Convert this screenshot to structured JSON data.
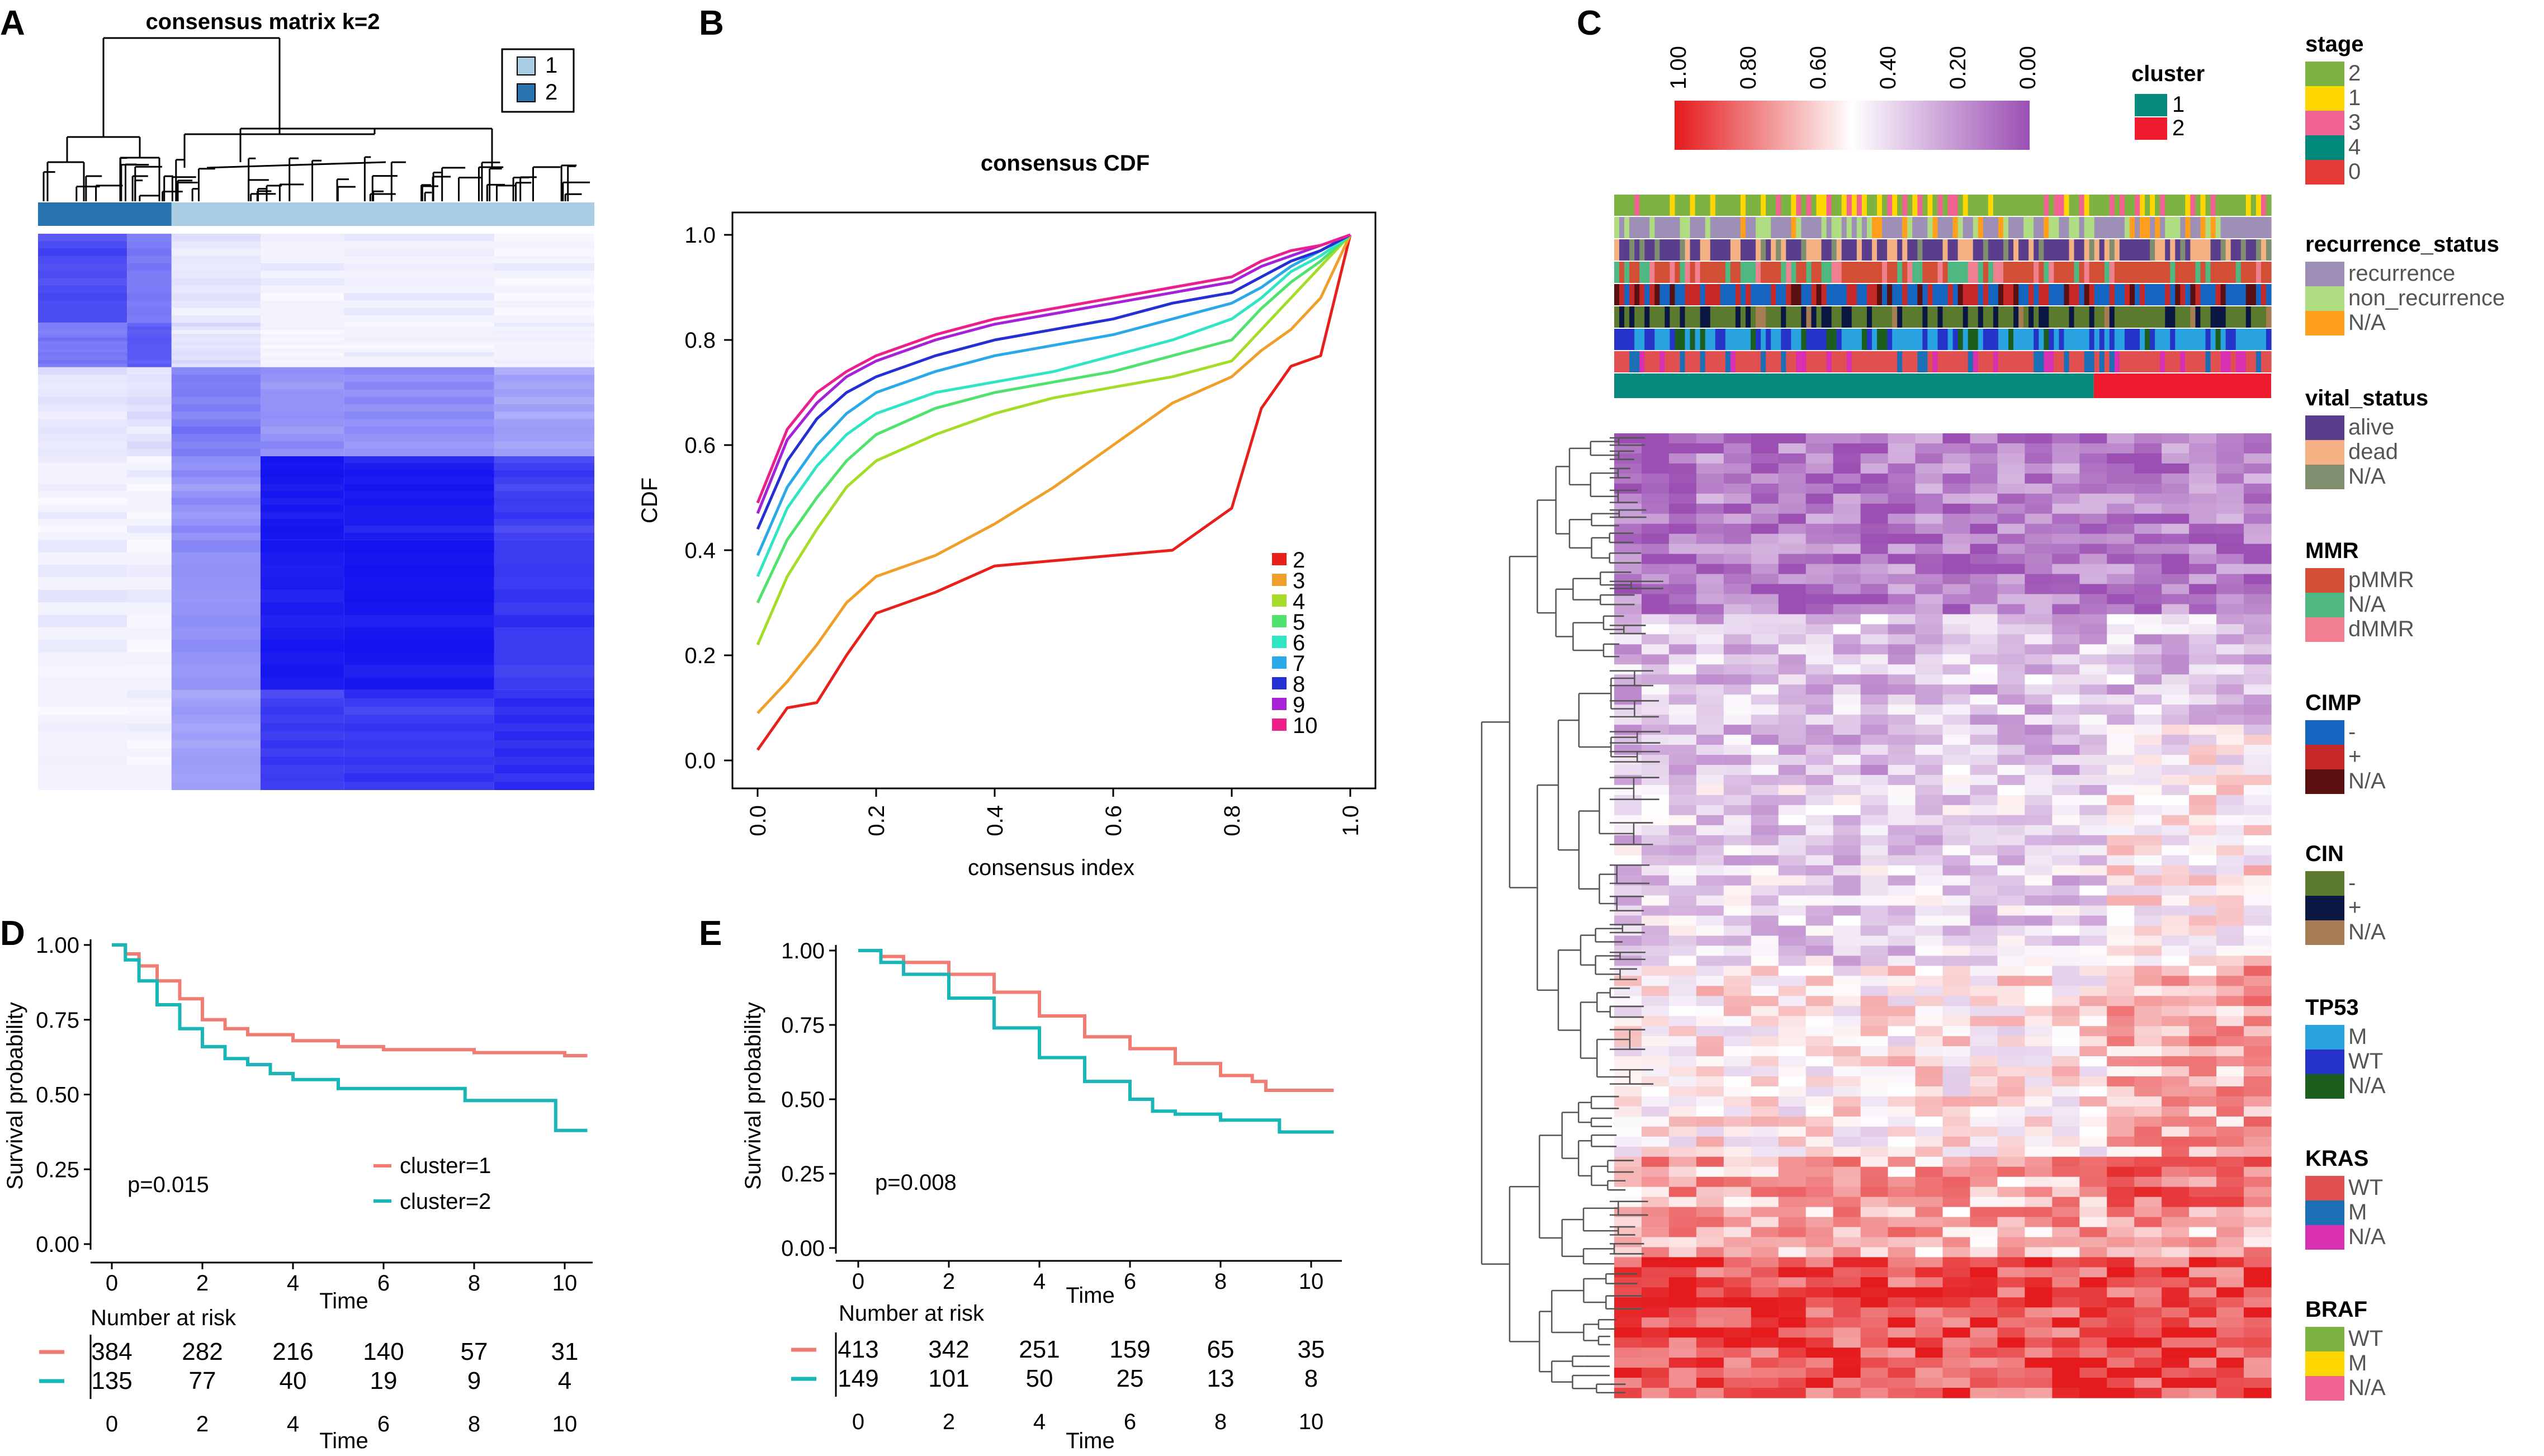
{
  "panel_labels": {
    "a": "A",
    "b": "B",
    "c": "C",
    "d": "D",
    "e": "E"
  },
  "chart_data": [
    {
      "type": "heatmap",
      "id": "A",
      "title": "consensus matrix k=2",
      "legend": {
        "entries": [
          "1",
          "2"
        ],
        "colors": [
          "#a9cde3",
          "#2872ad"
        ]
      },
      "color_scale": {
        "low": "#ffffff",
        "high": "#1010ef"
      },
      "blocks": [
        {
          "cluster": "2",
          "start": 0.0,
          "end": 0.24
        },
        {
          "cluster": "1",
          "start": 0.24,
          "end": 1.0
        }
      ]
    },
    {
      "type": "line",
      "id": "B",
      "title": "consensus CDF",
      "xlabel": "consensus index",
      "ylabel": "CDF",
      "xlim": [
        0,
        1
      ],
      "ylim": [
        0,
        1
      ],
      "xticks": [
        "0.0",
        "0.2",
        "0.4",
        "0.6",
        "0.8",
        "1.0"
      ],
      "yticks": [
        "0.0",
        "0.2",
        "0.4",
        "0.6",
        "0.8",
        "1.0"
      ],
      "x": [
        0,
        0.05,
        0.1,
        0.15,
        0.2,
        0.3,
        0.4,
        0.5,
        0.6,
        0.7,
        0.8,
        0.85,
        0.9,
        0.95,
        1.0
      ],
      "series": [
        {
          "name": "2",
          "color": "#e8201c",
          "values": [
            0.02,
            0.1,
            0.11,
            0.2,
            0.28,
            0.32,
            0.37,
            0.38,
            0.39,
            0.4,
            0.48,
            0.67,
            0.75,
            0.77,
            1.0
          ]
        },
        {
          "name": "3",
          "color": "#f0a02a",
          "values": [
            0.09,
            0.15,
            0.22,
            0.3,
            0.35,
            0.39,
            0.45,
            0.52,
            0.6,
            0.68,
            0.73,
            0.78,
            0.82,
            0.88,
            1.0
          ]
        },
        {
          "name": "4",
          "color": "#a5dc27",
          "values": [
            0.22,
            0.35,
            0.44,
            0.52,
            0.57,
            0.62,
            0.66,
            0.69,
            0.71,
            0.73,
            0.76,
            0.82,
            0.88,
            0.94,
            1.0
          ]
        },
        {
          "name": "5",
          "color": "#4fe36e",
          "values": [
            0.3,
            0.42,
            0.5,
            0.57,
            0.62,
            0.67,
            0.7,
            0.72,
            0.74,
            0.77,
            0.8,
            0.86,
            0.91,
            0.95,
            1.0
          ]
        },
        {
          "name": "6",
          "color": "#2fe5c4",
          "values": [
            0.35,
            0.48,
            0.56,
            0.62,
            0.66,
            0.7,
            0.72,
            0.74,
            0.77,
            0.8,
            0.84,
            0.88,
            0.93,
            0.96,
            1.0
          ]
        },
        {
          "name": "7",
          "color": "#2aa8e8",
          "values": [
            0.39,
            0.52,
            0.6,
            0.66,
            0.7,
            0.74,
            0.77,
            0.79,
            0.81,
            0.84,
            0.87,
            0.9,
            0.94,
            0.97,
            1.0
          ]
        },
        {
          "name": "8",
          "color": "#2430d4",
          "values": [
            0.44,
            0.57,
            0.65,
            0.7,
            0.73,
            0.77,
            0.8,
            0.82,
            0.84,
            0.87,
            0.89,
            0.92,
            0.95,
            0.97,
            1.0
          ]
        },
        {
          "name": "9",
          "color": "#a522d8",
          "values": [
            0.47,
            0.61,
            0.68,
            0.73,
            0.76,
            0.8,
            0.83,
            0.85,
            0.87,
            0.89,
            0.91,
            0.94,
            0.96,
            0.98,
            1.0
          ]
        },
        {
          "name": "10",
          "color": "#ec1f8c",
          "values": [
            0.49,
            0.63,
            0.7,
            0.74,
            0.77,
            0.81,
            0.84,
            0.86,
            0.88,
            0.9,
            0.92,
            0.95,
            0.97,
            0.98,
            1.0
          ]
        }
      ]
    },
    {
      "type": "heatmap",
      "id": "C",
      "color_scale": {
        "ticks": [
          "1.00",
          "0.80",
          "0.60",
          "0.40",
          "0.20",
          "0.00"
        ],
        "colors": [
          "#e41a1c",
          "#ffffff",
          "#9b4fb3"
        ]
      },
      "cluster_legend": {
        "title": "cluster",
        "entries": [
          {
            "label": "1",
            "color": "#078a7d"
          },
          {
            "label": "2",
            "color": "#ee1b2e"
          }
        ]
      },
      "cluster_split": 0.73,
      "annotation_legends": [
        {
          "title": "stage",
          "entries": [
            {
              "label": "2",
              "color": "#7cb342"
            },
            {
              "label": "1",
              "color": "#ffd600"
            },
            {
              "label": "3",
              "color": "#f06292"
            },
            {
              "label": "4",
              "color": "#00897b"
            },
            {
              "label": "0",
              "color": "#e53935"
            }
          ]
        },
        {
          "title": "recurrence_status",
          "entries": [
            {
              "label": "recurrence",
              "color": "#9e8fb6"
            },
            {
              "label": "non_recurrence",
              "color": "#b0dd82"
            },
            {
              "label": "N/A",
              "color": "#ff9f1c"
            }
          ]
        },
        {
          "title": "vital_status",
          "entries": [
            {
              "label": "alive",
              "color": "#5a3e8d"
            },
            {
              "label": "dead",
              "color": "#f4b183"
            },
            {
              "label": "N/A",
              "color": "#7f8e6f"
            }
          ]
        },
        {
          "title": "MMR",
          "entries": [
            {
              "label": "pMMR",
              "color": "#d24e34"
            },
            {
              "label": "N/A",
              "color": "#4fb882"
            },
            {
              "label": "dMMR",
              "color": "#f08090"
            }
          ]
        },
        {
          "title": "CIMP",
          "entries": [
            {
              "label": "-",
              "color": "#1565c0"
            },
            {
              "label": "+",
              "color": "#c62828"
            },
            {
              "label": "N/A",
              "color": "#5a1010"
            }
          ]
        },
        {
          "title": "CIN",
          "entries": [
            {
              "label": "-",
              "color": "#5b7a2d"
            },
            {
              "label": "+",
              "color": "#0b1642"
            },
            {
              "label": "N/A",
              "color": "#a67c52"
            }
          ]
        },
        {
          "title": "TP53",
          "entries": [
            {
              "label": "M",
              "color": "#29a3e0"
            },
            {
              "label": "WT",
              "color": "#2633c9"
            },
            {
              "label": "N/A",
              "color": "#1d5e1d"
            }
          ]
        },
        {
          "title": "KRAS",
          "entries": [
            {
              "label": "WT",
              "color": "#e05050"
            },
            {
              "label": "M",
              "color": "#1a6fb5"
            },
            {
              "label": "N/A",
              "color": "#d830b0"
            }
          ]
        },
        {
          "title": "BRAF",
          "entries": [
            {
              "label": "WT",
              "color": "#7cb342"
            },
            {
              "label": "M",
              "color": "#ffd600"
            },
            {
              "label": "N/A",
              "color": "#f06292"
            }
          ]
        }
      ]
    },
    {
      "type": "line",
      "id": "D",
      "xlabel": "Time",
      "ylabel": "Survival probability",
      "xlim": [
        0,
        10.5
      ],
      "ylim": [
        0,
        1
      ],
      "xticks": [
        "0",
        "2",
        "4",
        "6",
        "8",
        "10"
      ],
      "yticks": [
        "0.00",
        "0.25",
        "0.50",
        "0.75",
        "1.00"
      ],
      "pvalue": "p=0.015",
      "series": [
        {
          "name": "cluster=1",
          "color": "#f07c73",
          "x": [
            0,
            0.3,
            0.6,
            1,
            1.5,
            2,
            2.5,
            3,
            4,
            5,
            6,
            8,
            10,
            10.5
          ],
          "values": [
            1.0,
            0.97,
            0.93,
            0.88,
            0.82,
            0.75,
            0.72,
            0.7,
            0.68,
            0.66,
            0.65,
            0.64,
            0.63,
            0.63
          ]
        },
        {
          "name": "cluster=2",
          "color": "#18b6b6",
          "x": [
            0,
            0.3,
            0.6,
            1,
            1.5,
            2,
            2.5,
            3,
            3.5,
            4,
            5,
            6,
            7,
            7.8,
            9,
            9.8,
            10.5
          ],
          "values": [
            1.0,
            0.95,
            0.88,
            0.8,
            0.72,
            0.66,
            0.62,
            0.6,
            0.57,
            0.55,
            0.52,
            0.52,
            0.52,
            0.48,
            0.48,
            0.38,
            0.38
          ]
        }
      ],
      "risk_table": {
        "title": "Number at risk",
        "times": [
          "0",
          "2",
          "4",
          "6",
          "8",
          "10"
        ],
        "rows": [
          {
            "color": "#f07c73",
            "values": [
              "384",
              "282",
              "216",
              "140",
              "57",
              "31"
            ]
          },
          {
            "color": "#18b6b6",
            "values": [
              "135",
              "77",
              "40",
              "19",
              "9",
              "4"
            ]
          }
        ]
      }
    },
    {
      "type": "line",
      "id": "E",
      "xlabel": "Time",
      "ylabel": "Survival probability",
      "xlim": [
        0,
        10.5
      ],
      "ylim": [
        0,
        1
      ],
      "xticks": [
        "0",
        "2",
        "4",
        "6",
        "8",
        "10"
      ],
      "yticks": [
        "0.00",
        "0.25",
        "0.50",
        "0.75",
        "1.00"
      ],
      "pvalue": "p=0.008",
      "series": [
        {
          "name": "cluster=1",
          "color": "#f07c73",
          "x": [
            0,
            0.5,
            1,
            2,
            3,
            4,
            5,
            6,
            7,
            8,
            8.7,
            9,
            10,
            10.5
          ],
          "values": [
            1.0,
            0.98,
            0.96,
            0.92,
            0.86,
            0.78,
            0.71,
            0.67,
            0.62,
            0.58,
            0.56,
            0.53,
            0.53,
            0.53
          ]
        },
        {
          "name": "cluster=2",
          "color": "#18b6b6",
          "x": [
            0,
            0.5,
            1,
            2,
            3,
            4,
            5,
            6,
            6.5,
            7,
            8,
            9,
            9.3,
            10.5
          ],
          "values": [
            1.0,
            0.96,
            0.92,
            0.84,
            0.74,
            0.64,
            0.56,
            0.5,
            0.46,
            0.45,
            0.43,
            0.43,
            0.39,
            0.39
          ]
        }
      ],
      "risk_table": {
        "title": "Number at risk",
        "times": [
          "0",
          "2",
          "4",
          "6",
          "8",
          "10"
        ],
        "rows": [
          {
            "color": "#f07c73",
            "values": [
              "413",
              "342",
              "251",
              "159",
              "65",
              "35"
            ]
          },
          {
            "color": "#18b6b6",
            "values": [
              "149",
              "101",
              "50",
              "25",
              "13",
              "8"
            ]
          }
        ]
      }
    }
  ]
}
